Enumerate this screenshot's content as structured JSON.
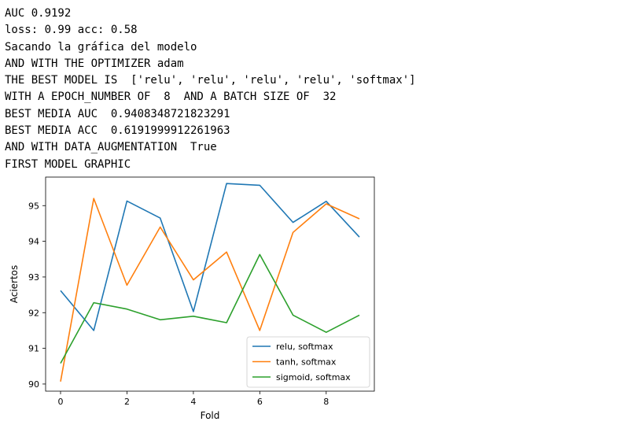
{
  "output_lines": [
    "AUC 0.9192",
    "loss: 0.99 acc: 0.58",
    "Sacando la gráfica del modelo",
    "AND WITH THE OPTIMIZER adam",
    "THE BEST MODEL IS  ['relu', 'relu', 'relu', 'relu', 'softmax']",
    "WITH A EPOCH_NUMBER OF  8  AND A BATCH SIZE OF  32",
    "BEST MEDIA AUC  0.9408348721823291",
    "BEST MEDIA ACC  0.6191999912261963",
    "AND WITH DATA_AUGMENTATION  True",
    "FIRST MODEL GRAPHIC"
  ],
  "chart_data": {
    "type": "line",
    "xlabel": "Fold",
    "ylabel": "Aciertos",
    "x": [
      0,
      1,
      2,
      3,
      4,
      5,
      6,
      7,
      8,
      9
    ],
    "xticks": [
      0,
      2,
      4,
      6,
      8
    ],
    "yticks": [
      90,
      91,
      92,
      93,
      94,
      95
    ],
    "xlim": [
      -0.45,
      9.45
    ],
    "ylim": [
      89.8,
      95.8
    ],
    "grid": false,
    "legend_position": "lower-right",
    "series": [
      {
        "name": "relu, softmax",
        "color": "#1f77b4",
        "values": [
          92.62,
          91.5,
          95.13,
          94.65,
          92.03,
          95.62,
          95.57,
          94.53,
          95.12,
          94.12
        ]
      },
      {
        "name": "tanh, softmax",
        "color": "#ff7f0e",
        "values": [
          90.07,
          95.2,
          92.77,
          94.4,
          92.92,
          93.7,
          91.5,
          94.25,
          95.05,
          94.63
        ]
      },
      {
        "name": "sigmoid, softmax",
        "color": "#2ca02c",
        "values": [
          90.58,
          92.28,
          92.1,
          91.8,
          91.9,
          91.72,
          93.63,
          91.93,
          91.45,
          91.93
        ]
      }
    ]
  }
}
